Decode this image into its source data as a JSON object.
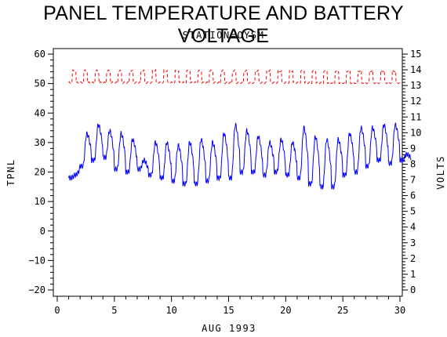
{
  "chart_data": {
    "type": "line",
    "title": "PANEL TEMPERATURE AND BATTERY VOLTAGE",
    "subtitle": "STATION=OYSM",
    "xlabel": "AUG 1993",
    "ylabel_left": "TPNL",
    "ylabel_right": "VOLTS",
    "xlim": [
      0,
      30
    ],
    "ylim_left": [
      -20,
      60
    ],
    "ylim_right": [
      0,
      15
    ],
    "xticks": [
      0,
      5,
      10,
      15,
      20,
      25,
      30
    ],
    "yticks_left": [
      -20,
      -10,
      0,
      10,
      20,
      30,
      40,
      50,
      60
    ],
    "yticks_right": [
      0,
      1,
      2,
      3,
      4,
      5,
      6,
      7,
      8,
      9,
      10,
      11,
      12,
      13,
      14,
      15
    ],
    "grid": false,
    "series": [
      {
        "axis": "left",
        "color": "#0000ff",
        "daily": [
          {
            "day": 1,
            "max": 19,
            "min": 18
          },
          {
            "day": 2,
            "max": 33,
            "min": 22
          },
          {
            "day": 3,
            "max": 36,
            "min": 24
          },
          {
            "day": 4,
            "max": 34,
            "min": 25
          },
          {
            "day": 5,
            "max": 33,
            "min": 21
          },
          {
            "day": 6,
            "max": 31,
            "min": 20
          },
          {
            "day": 7,
            "max": 24,
            "min": 21
          },
          {
            "day": 8,
            "max": 30,
            "min": 19
          },
          {
            "day": 9,
            "max": 30,
            "min": 18
          },
          {
            "day": 10,
            "max": 29,
            "min": 17
          },
          {
            "day": 11,
            "max": 30,
            "min": 16
          },
          {
            "day": 12,
            "max": 31,
            "min": 16
          },
          {
            "day": 13,
            "max": 30,
            "min": 17
          },
          {
            "day": 14,
            "max": 33,
            "min": 18
          },
          {
            "day": 15,
            "max": 36,
            "min": 18
          },
          {
            "day": 16,
            "max": 34,
            "min": 20
          },
          {
            "day": 17,
            "max": 32,
            "min": 20
          },
          {
            "day": 18,
            "max": 30,
            "min": 19
          },
          {
            "day": 19,
            "max": 31,
            "min": 20
          },
          {
            "day": 20,
            "max": 30,
            "min": 19
          },
          {
            "day": 21,
            "max": 35,
            "min": 18
          },
          {
            "day": 22,
            "max": 32,
            "min": 16
          },
          {
            "day": 23,
            "max": 31,
            "min": 15
          },
          {
            "day": 24,
            "max": 31,
            "min": 15
          },
          {
            "day": 25,
            "max": 33,
            "min": 19
          },
          {
            "day": 26,
            "max": 35,
            "min": 20
          },
          {
            "day": 27,
            "max": 35,
            "min": 22
          },
          {
            "day": 28,
            "max": 36,
            "min": 24
          },
          {
            "day": 29,
            "max": 36,
            "min": 23
          },
          {
            "day": 30,
            "max": 26,
            "min": 24
          }
        ]
      },
      {
        "axis": "right",
        "color": "#ff0000",
        "style": "dashed",
        "range": {
          "min": 12.9,
          "max": 14.0
        },
        "x_range": [
          1,
          30
        ]
      }
    ]
  }
}
